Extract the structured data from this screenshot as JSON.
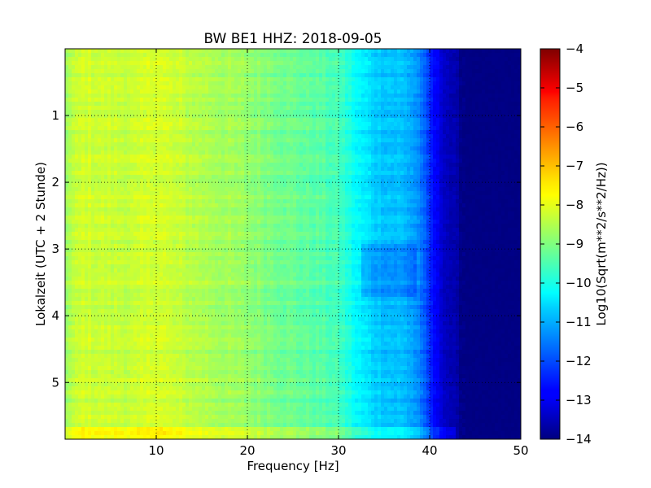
{
  "chart_data": {
    "type": "heatmap",
    "title": "BW BE1 HHZ: 2018-09-05",
    "xlabel": "Frequency [Hz]",
    "ylabel": "Lokalzeit (UTC + 2 Stunde)",
    "xlim": [
      0,
      50
    ],
    "ylim": [
      5.85,
      0
    ],
    "xticks": [
      10,
      20,
      30,
      40,
      50
    ],
    "yticks": [
      1,
      2,
      3,
      4,
      5
    ],
    "grid": true,
    "colormap": "jet",
    "colorbar": {
      "label": "Log10(Sqrt(m**2/s**2/Hz))",
      "min": -14,
      "max": -4,
      "ticks": [
        -4,
        -5,
        -6,
        -7,
        -8,
        -9,
        -10,
        -11,
        -12,
        -13,
        -14
      ]
    },
    "frequency_profile": {
      "frequency_hz": [
        0,
        1,
        2,
        5,
        8,
        10,
        12,
        15,
        20,
        25,
        28,
        30,
        31,
        32,
        33,
        34,
        35,
        37,
        38,
        39,
        40,
        41,
        42,
        43,
        44,
        50
      ],
      "log10_psd": [
        -8.7,
        -8.4,
        -8.2,
        -8.3,
        -8.3,
        -8.1,
        -8.3,
        -8.5,
        -8.8,
        -9.2,
        -9.4,
        -9.6,
        -9.9,
        -10.3,
        -10.5,
        -10.7,
        -10.8,
        -10.9,
        -11.1,
        -11.5,
        -12.4,
        -13.0,
        -13.4,
        -13.7,
        -14.0,
        -14.0
      ]
    },
    "features": [
      {
        "text": "dark-blue (about -14) region beyond ~43 Hz for all times"
      },
      {
        "text": "elevated band near 5.75 h extending to ~43 Hz"
      },
      {
        "text": "band 33-38 Hz darker between 3 h and 3.7 h"
      }
    ]
  }
}
